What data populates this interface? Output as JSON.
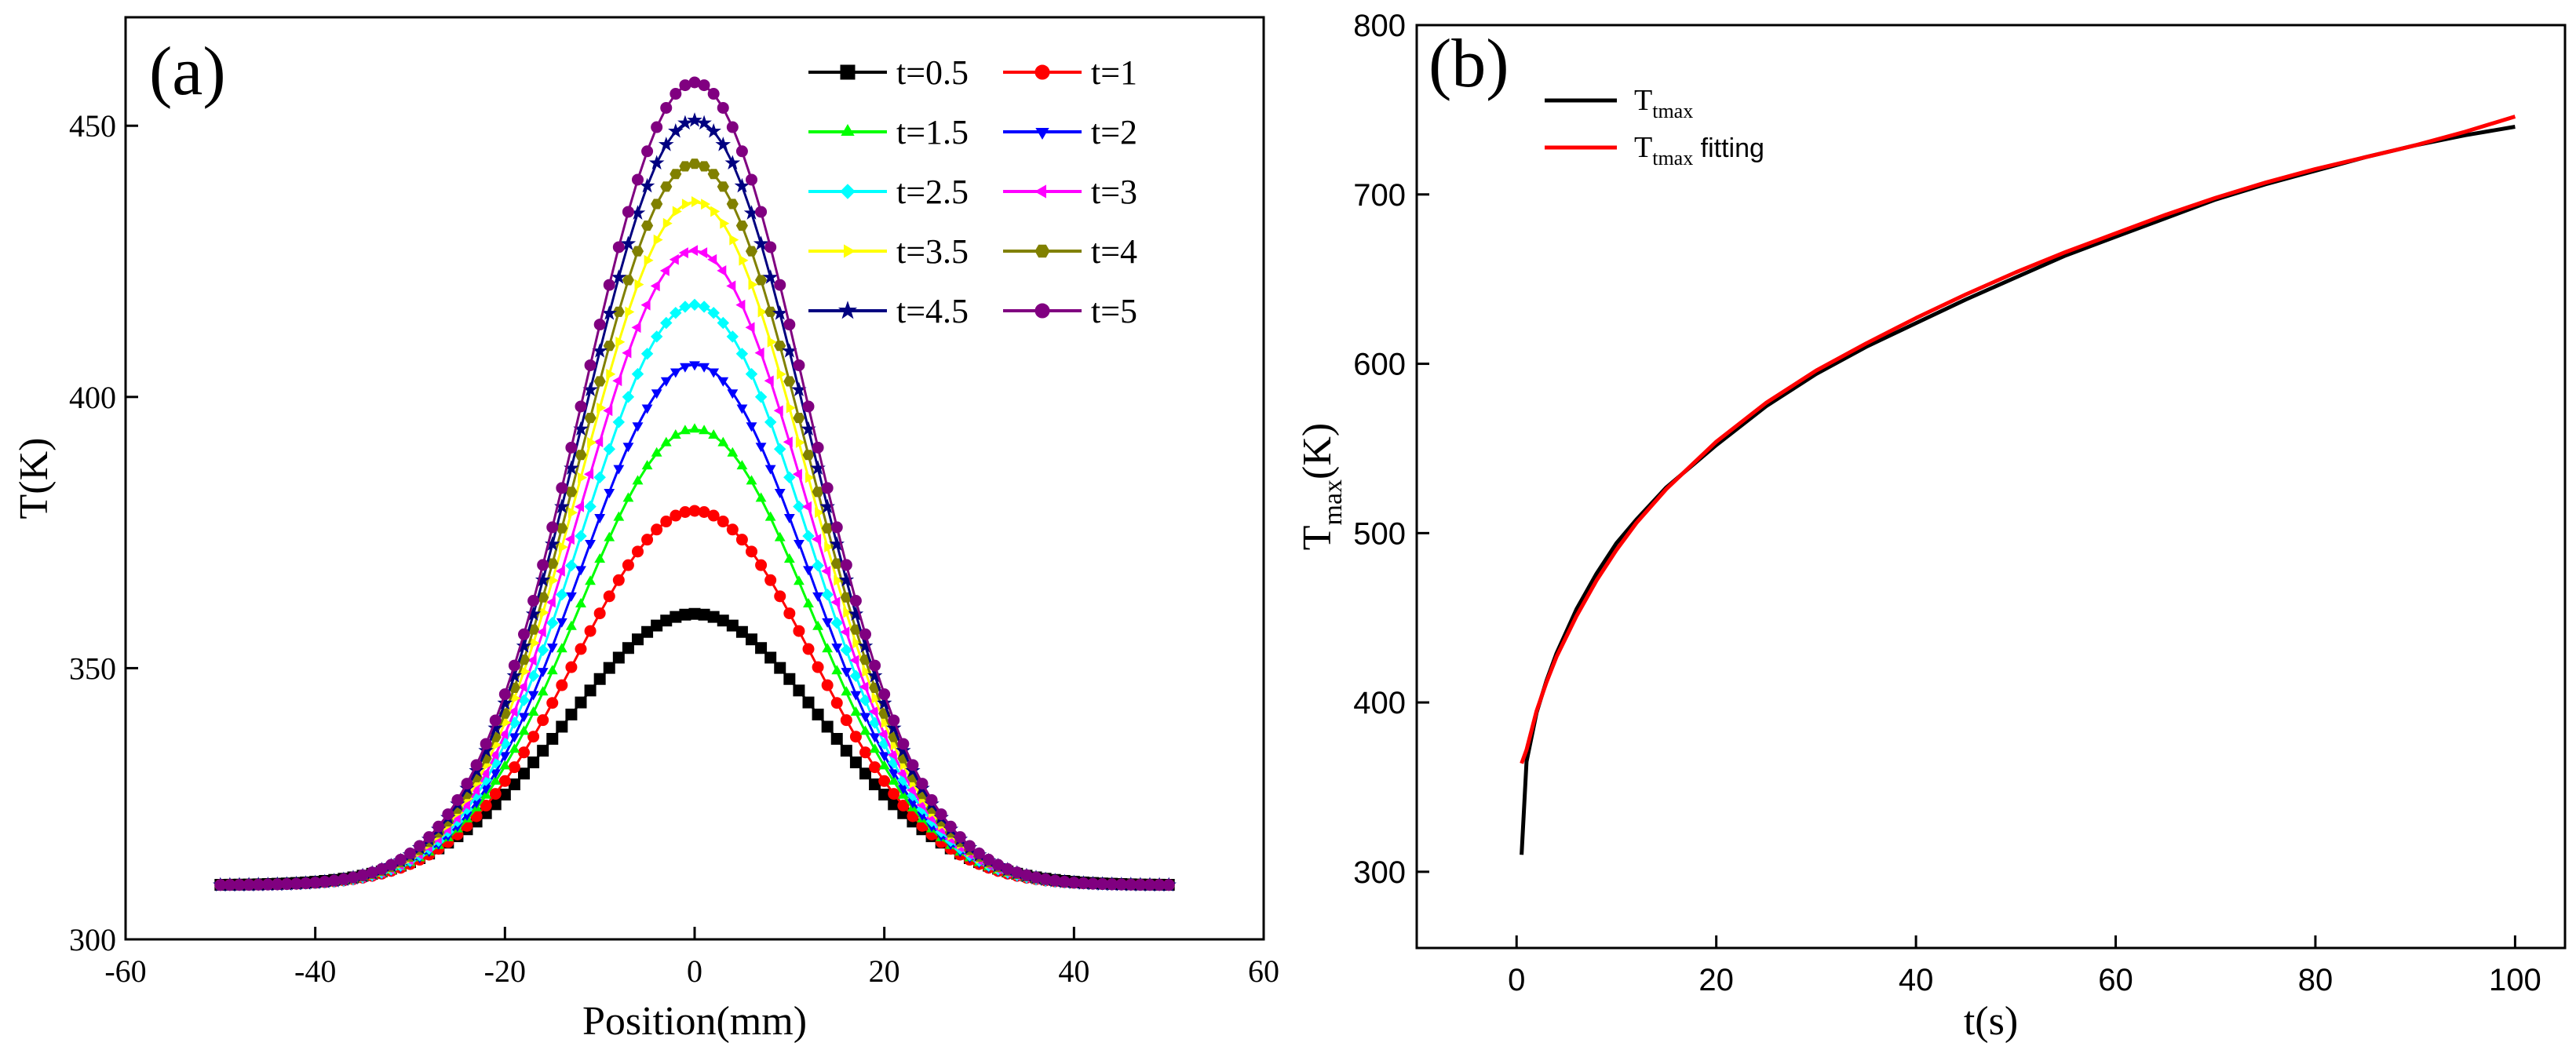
{
  "figure": {
    "panels": [
      "(a)",
      "(b)"
    ]
  },
  "chart_data": [
    {
      "type": "line",
      "panel_label": "(a)",
      "xlabel": "Position(mm)",
      "ylabel": "T(K)",
      "xlim": [
        -60,
        60
      ],
      "ylim": [
        300,
        470
      ],
      "xticks": [
        -60,
        -40,
        -20,
        0,
        20,
        40,
        60
      ],
      "yticks": [
        300,
        350,
        400,
        450
      ],
      "grid": false,
      "legend_position": "top-right",
      "legend_columns": 2,
      "x_range": [
        -50,
        50
      ],
      "x_step": 1,
      "base_temperature": 310,
      "series": [
        {
          "name": "t=0.5",
          "peak": 360,
          "sigma": 13.5,
          "color": "#000000",
          "marker": "square"
        },
        {
          "name": "t=1",
          "peak": 379,
          "sigma": 12.5,
          "color": "#ff0000",
          "marker": "circle"
        },
        {
          "name": "t=1.5",
          "peak": 394,
          "sigma": 12.2,
          "color": "#00ff00",
          "marker": "triangle-up"
        },
        {
          "name": "t=2",
          "peak": 406,
          "sigma": 12.0,
          "color": "#0000ff",
          "marker": "triangle-down"
        },
        {
          "name": "t=2.5",
          "peak": 417,
          "sigma": 11.9,
          "color": "#00ffff",
          "marker": "diamond"
        },
        {
          "name": "t=3",
          "peak": 427,
          "sigma": 11.8,
          "color": "#ff00ff",
          "marker": "triangle-left"
        },
        {
          "name": "t=3.5",
          "peak": 436,
          "sigma": 11.8,
          "color": "#ffff00",
          "marker": "triangle-right"
        },
        {
          "name": "t=4",
          "peak": 443,
          "sigma": 11.8,
          "color": "#808000",
          "marker": "hexagon"
        },
        {
          "name": "t=4.5",
          "peak": 451,
          "sigma": 11.8,
          "color": "#000080",
          "marker": "star"
        },
        {
          "name": "t=5",
          "peak": 458,
          "sigma": 11.8,
          "color": "#800080",
          "marker": "circle"
        }
      ]
    },
    {
      "type": "line",
      "panel_label": "(b)",
      "xlabel": "t(s)",
      "ylabel_main": "T",
      "ylabel_sub": "max",
      "ylabel_unit": "(K)",
      "xlim": [
        -10,
        105
      ],
      "ylim": [
        255,
        800
      ],
      "xticks": [
        0,
        20,
        40,
        60,
        80,
        100
      ],
      "yticks": [
        300,
        400,
        500,
        600,
        700,
        800
      ],
      "grid": false,
      "legend_position": "top-left",
      "series": [
        {
          "name_main": "T",
          "name_sub": "tmax",
          "name_suffix": "",
          "color": "#000000",
          "x": [
            0.5,
            1,
            2,
            3,
            4,
            6,
            8,
            10,
            12,
            15,
            20,
            25,
            30,
            35,
            40,
            45,
            50,
            55,
            60,
            65,
            70,
            75,
            80,
            85,
            90,
            95,
            100
          ],
          "y": [
            310,
            365,
            394,
            413,
            429,
            455,
            476,
            494,
            508,
            527,
            552,
            575,
            594,
            610,
            624,
            638,
            651,
            664,
            675,
            686,
            697,
            706,
            714,
            722,
            729,
            735,
            740
          ]
        },
        {
          "name_main": "T",
          "name_sub": "tmax",
          "name_suffix": "fitting",
          "color": "#ff0000",
          "x": [
            0.5,
            1,
            2,
            3,
            4,
            6,
            8,
            10,
            12,
            15,
            20,
            25,
            30,
            35,
            40,
            45,
            50,
            55,
            60,
            65,
            70,
            75,
            80,
            85,
            90,
            95,
            100
          ],
          "y": [
            364,
            372,
            395,
            412,
            427,
            451,
            472,
            490,
            506,
            526,
            554,
            577,
            596,
            612,
            627,
            641,
            654,
            666,
            677,
            688,
            698,
            707,
            715,
            722,
            729,
            737,
            746
          ]
        }
      ]
    }
  ]
}
